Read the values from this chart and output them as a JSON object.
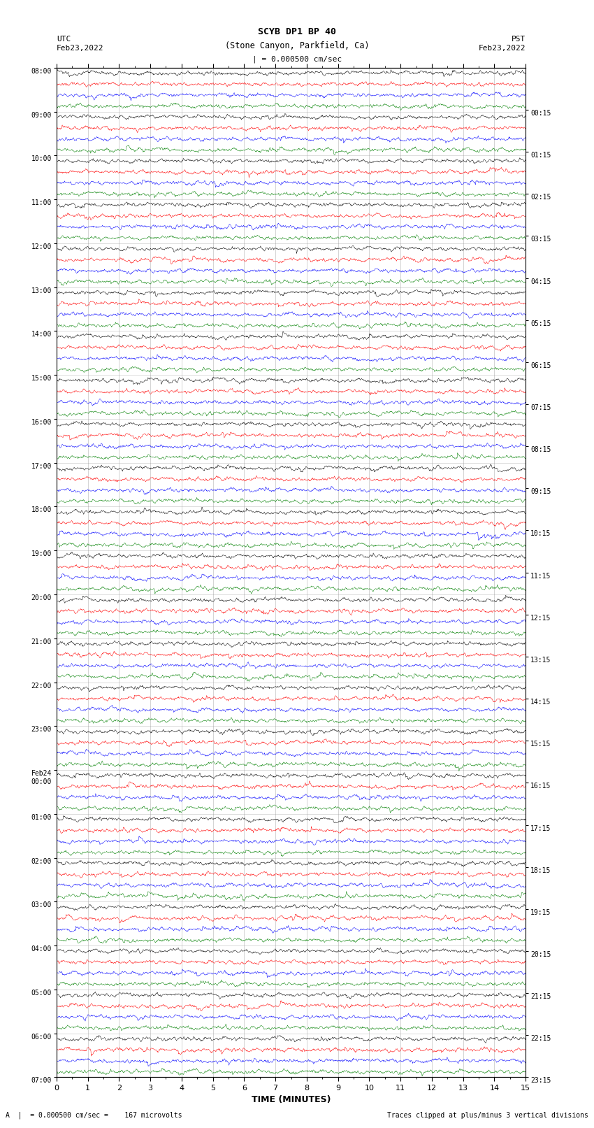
{
  "title_line1": "SCYB DP1 BP 40",
  "title_line2": "(Stone Canyon, Parkfield, Ca)",
  "scale_text": "| = 0.000500 cm/sec",
  "left_label_top": "UTC",
  "left_label_date": "Feb23,2022",
  "right_label_top": "PST",
  "right_label_date": "Feb23,2022",
  "bottom_label": "TIME (MINUTES)",
  "footer_left": "A  |  = 0.000500 cm/sec =    167 microvolts",
  "footer_right": "Traces clipped at plus/minus 3 vertical divisions",
  "colors": [
    "black",
    "red",
    "blue",
    "green"
  ],
  "num_hours": 23,
  "traces_per_hour": 4,
  "xlim": [
    0,
    15
  ],
  "xticks": [
    0,
    1,
    2,
    3,
    4,
    5,
    6,
    7,
    8,
    9,
    10,
    11,
    12,
    13,
    14,
    15
  ],
  "left_times": [
    "08:00",
    "09:00",
    "10:00",
    "11:00",
    "12:00",
    "13:00",
    "14:00",
    "15:00",
    "16:00",
    "17:00",
    "18:00",
    "19:00",
    "20:00",
    "21:00",
    "22:00",
    "23:00",
    "Feb24\n00:00",
    "01:00",
    "02:00",
    "03:00",
    "04:00",
    "05:00",
    "06:00",
    "07:00"
  ],
  "right_times": [
    "00:15",
    "01:15",
    "02:15",
    "03:15",
    "04:15",
    "05:15",
    "06:15",
    "07:15",
    "08:15",
    "09:15",
    "10:15",
    "11:15",
    "12:15",
    "13:15",
    "14:15",
    "15:15",
    "16:15",
    "17:15",
    "18:15",
    "19:15",
    "20:15",
    "21:15",
    "22:15",
    "23:15"
  ],
  "fig_width": 8.5,
  "fig_height": 16.13,
  "dpi": 100,
  "trace_amplitude": 0.32,
  "background_color": "white",
  "grid_color": "#888888",
  "grid_alpha": 0.5,
  "linewidth": 0.35
}
